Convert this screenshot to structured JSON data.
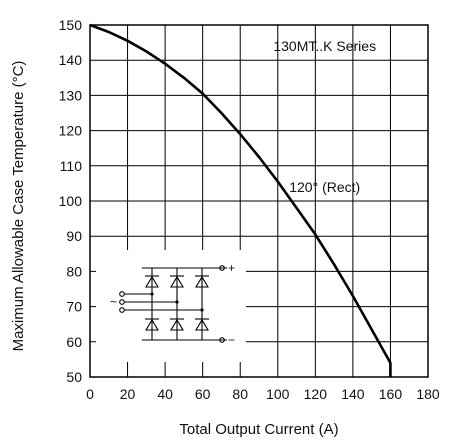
{
  "chart_data": {
    "type": "line",
    "title": "",
    "xlabel": "Total Output Current (A)",
    "ylabel": "Maximum Allowable Case Temperature (°C)",
    "xlim": [
      0,
      180
    ],
    "ylim": [
      50,
      150
    ],
    "x_ticks": [
      0,
      20,
      40,
      60,
      80,
      100,
      120,
      140,
      160,
      180
    ],
    "y_ticks": [
      50,
      60,
      70,
      80,
      90,
      100,
      110,
      120,
      130,
      140,
      150
    ],
    "grid": true,
    "series": [
      {
        "name": "120° (Rect)",
        "x": [
          0,
          10,
          20,
          30,
          40,
          50,
          60,
          70,
          80,
          90,
          100,
          110,
          120,
          130,
          140,
          150,
          160,
          160
        ],
        "y": [
          150,
          148,
          145.5,
          142.5,
          139,
          135,
          130.5,
          125,
          119,
          112.5,
          105.5,
          98,
          90.5,
          82,
          73,
          63.5,
          54,
          50
        ]
      }
    ],
    "annotations": [
      {
        "text": "130MT..K Series",
        "x": 125,
        "y": 144
      },
      {
        "text": "120° (Rect)",
        "x": 125,
        "y": 104
      }
    ],
    "inset": "three-phase-bridge-rectifier-schematic",
    "inset_terminals": {
      "plus": "+",
      "minus": "−",
      "ac": "~"
    }
  }
}
